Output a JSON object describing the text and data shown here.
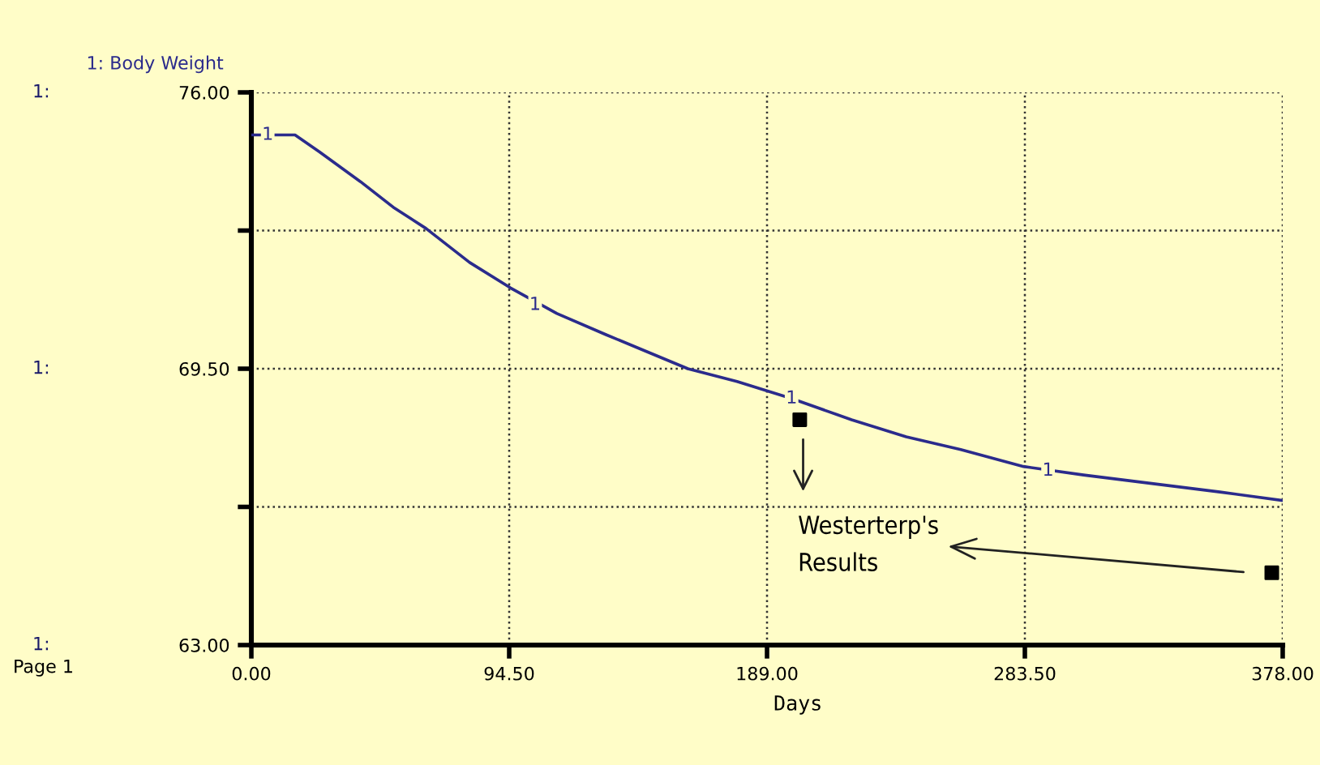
{
  "chart_data": {
    "type": "line",
    "xlabel": "Days",
    "series": [
      {
        "name": "1: Body Weight",
        "color": "#2b2b8c",
        "x": [
          0,
          16,
          25,
          40,
          52,
          64,
          80,
          95,
          112,
          130,
          145,
          160,
          178,
          198,
          220,
          240,
          260,
          283,
          305,
          330,
          355,
          378
        ],
        "values": [
          75.0,
          75.0,
          74.6,
          73.9,
          73.3,
          72.8,
          72.0,
          71.4,
          70.8,
          70.3,
          69.9,
          69.5,
          69.2,
          68.8,
          68.3,
          67.9,
          67.6,
          67.2,
          67.0,
          66.8,
          66.6,
          66.4
        ]
      },
      {
        "type": "scatter",
        "color": "#000000",
        "marker": "square",
        "x": [
          201,
          374
        ],
        "values": [
          68.3,
          64.7
        ]
      }
    ],
    "xlim": [
      0,
      378
    ],
    "xticks": [
      {
        "value": 0,
        "label": "0.00"
      },
      {
        "value": 94.5,
        "label": "94.50"
      },
      {
        "value": 189,
        "label": "189.00"
      },
      {
        "value": 283.5,
        "label": "283.50"
      },
      {
        "value": 378,
        "label": "378.00"
      }
    ],
    "ylim": [
      63,
      76
    ],
    "yticks": [
      {
        "value": 63,
        "label": "63.00"
      },
      {
        "value": 66.25,
        "label": null
      },
      {
        "value": 69.5,
        "label": "69.50"
      },
      {
        "value": 72.75,
        "label": null
      },
      {
        "value": 76,
        "label": "76.00"
      }
    ],
    "grid": true,
    "line_style": "solid",
    "annotations": [
      {
        "text": "1",
        "x": 6,
        "y": 75.0
      },
      {
        "text": "1",
        "x": 104,
        "y": 71.0
      },
      {
        "text": "1",
        "x": 198,
        "y": 68.8
      },
      {
        "text": "1",
        "x": 292,
        "y": 67.1
      },
      "Westerterp's\nResults",
      "1:",
      "1:",
      "1:",
      "Page 1"
    ]
  }
}
